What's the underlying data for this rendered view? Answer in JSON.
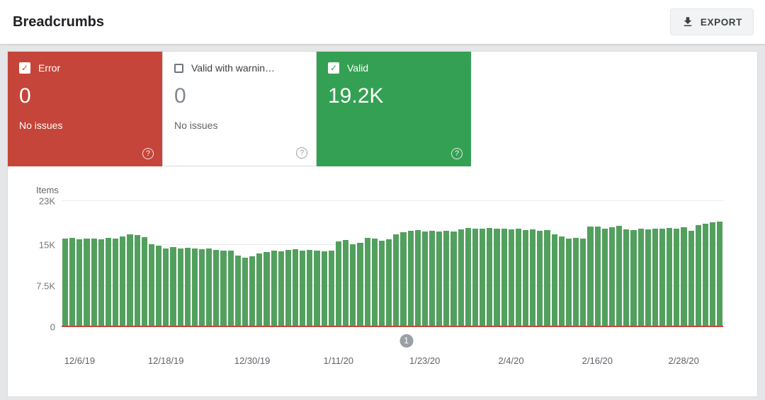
{
  "header": {
    "title": "Breadcrumbs",
    "export_label": "EXPORT"
  },
  "cards": {
    "error": {
      "label": "Error",
      "count": "0",
      "sub": "No issues",
      "checked": true,
      "color": "#c5453a"
    },
    "warning": {
      "label": "Valid with warnin…",
      "count": "0",
      "sub": "No issues",
      "checked": false
    },
    "valid": {
      "label": "Valid",
      "count": "19.2K",
      "checked": true,
      "color": "#34a053"
    }
  },
  "chart_data": {
    "type": "bar",
    "ylabel": "Items",
    "unit": "K",
    "ymax": 23,
    "ylim": [
      0,
      23
    ],
    "grid": true,
    "bar_color": "#52a05e",
    "error_line_color": "#c5453a",
    "date_range": {
      "start": "12/4/19",
      "end": "3/4/20",
      "interval": "daily"
    },
    "yticks": [
      {
        "label": "23K",
        "value": 23
      },
      {
        "label": "15K",
        "value": 15
      },
      {
        "label": "7.5K",
        "value": 7.5
      },
      {
        "label": "0",
        "value": 0
      }
    ],
    "x_ticks": [
      {
        "label": "12/6/19",
        "index": 2
      },
      {
        "label": "12/18/19",
        "index": 14
      },
      {
        "label": "12/30/19",
        "index": 26
      },
      {
        "label": "1/11/20",
        "index": 38
      },
      {
        "label": "1/23/20",
        "index": 50
      },
      {
        "label": "2/4/20",
        "index": 62
      },
      {
        "label": "2/16/20",
        "index": 74
      },
      {
        "label": "2/28/20",
        "index": 86
      }
    ],
    "series": [
      {
        "name": "Valid",
        "color": "#52a05e",
        "values": [
          16.1,
          16.3,
          16.0,
          16.1,
          16.2,
          16.0,
          16.3,
          16.2,
          16.6,
          16.9,
          16.8,
          16.4,
          15.1,
          14.9,
          14.4,
          14.6,
          14.3,
          14.5,
          14.4,
          14.2,
          14.3,
          14.1,
          13.9,
          14.0,
          13.0,
          12.7,
          12.9,
          13.4,
          13.7,
          13.9,
          13.8,
          14.1,
          14.2,
          14.0,
          14.1,
          13.9,
          13.8,
          14.0,
          15.6,
          15.9,
          15.1,
          15.4,
          16.3,
          16.1,
          15.8,
          16.0,
          16.9,
          17.3,
          17.6,
          17.7,
          17.5,
          17.6,
          17.4,
          17.6,
          17.5,
          17.8,
          18.1,
          17.9,
          18.0,
          18.1,
          17.9,
          18.0,
          17.8,
          17.9,
          17.7,
          17.8,
          17.6,
          17.7,
          16.9,
          16.5,
          16.2,
          16.3,
          16.1,
          18.3,
          18.4,
          17.9,
          18.2,
          18.5,
          17.8,
          17.7,
          17.9,
          17.8,
          18.0,
          17.9,
          18.1,
          18.0,
          18.2,
          17.6,
          18.6,
          18.9,
          19.1,
          19.2
        ]
      },
      {
        "name": "Error",
        "color": "#c5453a",
        "flat_value": 0
      }
    ],
    "marker": {
      "label": "1",
      "fraction": 0.521
    }
  }
}
